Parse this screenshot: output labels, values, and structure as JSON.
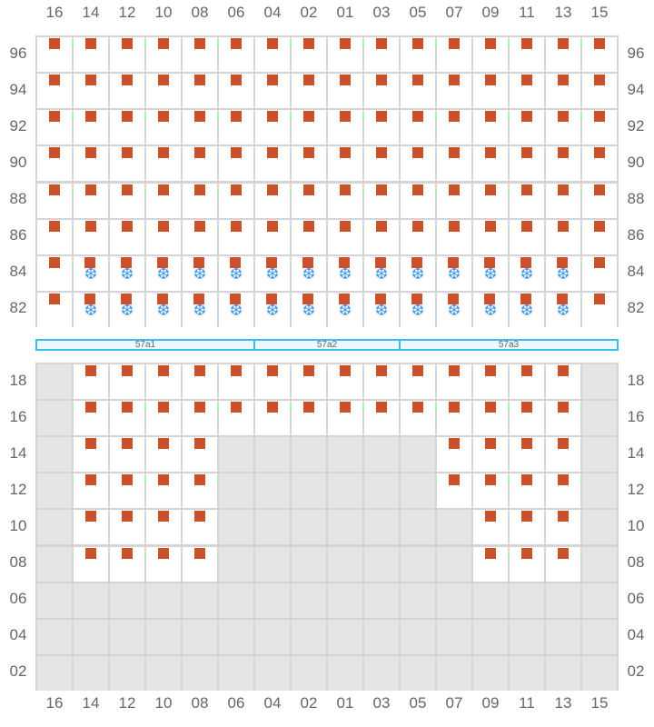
{
  "columns": [
    "16",
    "14",
    "12",
    "10",
    "08",
    "06",
    "04",
    "02",
    "01",
    "03",
    "05",
    "07",
    "09",
    "11",
    "13",
    "15"
  ],
  "colors": {
    "seat": "#cc5029",
    "snow": "#4a9ae0",
    "disabled": "#e4e4e7",
    "band": "#3bbcf0"
  },
  "legend_cell_states": {
    "s": "seat-marker",
    "sf": "seat-marker + snowflake-icon",
    "d": "disabled",
    "e": "empty"
  },
  "top_rows": [
    {
      "label": "96",
      "cells": [
        "s",
        "s",
        "s",
        "s",
        "s",
        "s",
        "s",
        "s",
        "s",
        "s",
        "s",
        "s",
        "s",
        "s",
        "s",
        "s"
      ]
    },
    {
      "label": "94",
      "cells": [
        "s",
        "s",
        "s",
        "s",
        "s",
        "s",
        "s",
        "s",
        "s",
        "s",
        "s",
        "s",
        "s",
        "s",
        "s",
        "s"
      ]
    },
    {
      "label": "92",
      "cells": [
        "s",
        "s",
        "s",
        "s",
        "s",
        "s",
        "s",
        "s",
        "s",
        "s",
        "s",
        "s",
        "s",
        "s",
        "s",
        "s"
      ]
    },
    {
      "label": "90",
      "cells": [
        "s",
        "s",
        "s",
        "s",
        "s",
        "s",
        "s",
        "s",
        "s",
        "s",
        "s",
        "s",
        "s",
        "s",
        "s",
        "s"
      ]
    },
    {
      "label": "88",
      "cells": [
        "s",
        "s",
        "s",
        "s",
        "s",
        "s",
        "s",
        "s",
        "s",
        "s",
        "s",
        "s",
        "s",
        "s",
        "s",
        "s"
      ]
    },
    {
      "label": "86",
      "cells": [
        "s",
        "s",
        "s",
        "s",
        "s",
        "s",
        "s",
        "s",
        "s",
        "s",
        "s",
        "s",
        "s",
        "s",
        "s",
        "s"
      ]
    },
    {
      "label": "84",
      "cells": [
        "s",
        "sf",
        "sf",
        "sf",
        "sf",
        "sf",
        "sf",
        "sf",
        "sf",
        "sf",
        "sf",
        "sf",
        "sf",
        "sf",
        "sf",
        "s"
      ]
    },
    {
      "label": "82",
      "cells": [
        "s",
        "sf",
        "sf",
        "sf",
        "sf",
        "sf",
        "sf",
        "sf",
        "sf",
        "sf",
        "sf",
        "sf",
        "sf",
        "sf",
        "sf",
        "s"
      ]
    }
  ],
  "sections": [
    {
      "label": "57a1",
      "span": 6
    },
    {
      "label": "57a2",
      "span": 4
    },
    {
      "label": "57a3",
      "span": 6
    }
  ],
  "bottom_rows": [
    {
      "label": "18",
      "cells": [
        "d",
        "s",
        "s",
        "s",
        "s",
        "s",
        "s",
        "s",
        "s",
        "s",
        "s",
        "s",
        "s",
        "s",
        "s",
        "d"
      ]
    },
    {
      "label": "16",
      "cells": [
        "d",
        "s",
        "s",
        "s",
        "s",
        "s",
        "s",
        "s",
        "s",
        "s",
        "s",
        "s",
        "s",
        "s",
        "s",
        "d"
      ]
    },
    {
      "label": "14",
      "cells": [
        "d",
        "s",
        "s",
        "s",
        "s",
        "d",
        "d",
        "d",
        "d",
        "d",
        "d",
        "s",
        "s",
        "s",
        "s",
        "d"
      ]
    },
    {
      "label": "12",
      "cells": [
        "d",
        "s",
        "s",
        "s",
        "s",
        "d",
        "d",
        "d",
        "d",
        "d",
        "d",
        "s",
        "s",
        "s",
        "s",
        "d"
      ]
    },
    {
      "label": "10",
      "cells": [
        "d",
        "s",
        "s",
        "s",
        "s",
        "d",
        "d",
        "d",
        "d",
        "d",
        "d",
        "d",
        "s",
        "s",
        "s",
        "d"
      ]
    },
    {
      "label": "08",
      "cells": [
        "d",
        "s",
        "s",
        "s",
        "s",
        "d",
        "d",
        "d",
        "d",
        "d",
        "d",
        "d",
        "s",
        "s",
        "s",
        "d"
      ]
    },
    {
      "label": "06",
      "cells": [
        "d",
        "d",
        "d",
        "d",
        "d",
        "d",
        "d",
        "d",
        "d",
        "d",
        "d",
        "d",
        "d",
        "d",
        "d",
        "d"
      ]
    },
    {
      "label": "04",
      "cells": [
        "d",
        "d",
        "d",
        "d",
        "d",
        "d",
        "d",
        "d",
        "d",
        "d",
        "d",
        "d",
        "d",
        "d",
        "d",
        "d"
      ]
    },
    {
      "label": "02",
      "cells": [
        "d",
        "d",
        "d",
        "d",
        "d",
        "d",
        "d",
        "d",
        "d",
        "d",
        "d",
        "d",
        "d",
        "d",
        "d",
        "d"
      ]
    }
  ],
  "snow_glyph": "❆"
}
